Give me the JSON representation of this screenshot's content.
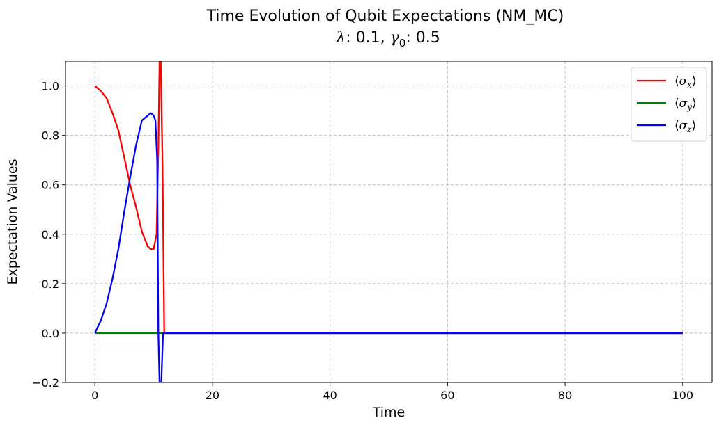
{
  "chart_data": {
    "type": "line",
    "title": "Time Evolution of Qubit Expectations (NM_MC)",
    "subtitle": "λ: 0.1, γ0: 0.5",
    "subtitle_parts": {
      "lambda_label": "λ",
      "lambda_value": ": 0.1, ",
      "gamma_label": "γ",
      "gamma_sub": "0",
      "gamma_value": ": 0.5"
    },
    "xlabel": "Time",
    "ylabel": "Expectation Values",
    "xlim": [
      -5,
      105
    ],
    "ylim": [
      -0.2,
      1.1
    ],
    "xticks": [
      0,
      20,
      40,
      60,
      80,
      100
    ],
    "yticks": [
      -0.2,
      0.0,
      0.2,
      0.4,
      0.6,
      0.8,
      1.0
    ],
    "ytick_labels": [
      "−0.2",
      "0.0",
      "0.2",
      "0.4",
      "0.6",
      "0.8",
      "1.0"
    ],
    "grid": true,
    "legend_position": "top-right",
    "series": [
      {
        "name": "⟨σx⟩",
        "label_parts": [
          "⟨",
          "σ",
          "x",
          "⟩"
        ],
        "color": "#ff0000",
        "x": [
          0,
          1,
          2,
          3,
          4,
          5,
          6,
          7,
          8,
          9,
          9.5,
          10,
          10.5,
          10.8,
          11.0,
          11.2,
          11.5,
          11.8,
          12,
          20,
          40,
          60,
          80,
          100
        ],
        "y": [
          1.0,
          0.98,
          0.95,
          0.89,
          0.82,
          0.71,
          0.6,
          0.51,
          0.41,
          0.35,
          0.34,
          0.34,
          0.4,
          0.75,
          1.1,
          1.1,
          0.7,
          0.0,
          0.0,
          0.0,
          0.0,
          0.0,
          0.0,
          0.0
        ]
      },
      {
        "name": "⟨σy⟩",
        "label_parts": [
          "⟨",
          "σ",
          "y",
          "⟩"
        ],
        "color": "#008000",
        "x": [
          0,
          20,
          40,
          60,
          80,
          100
        ],
        "y": [
          0.0,
          0.0,
          0.0,
          0.0,
          0.0,
          0.0
        ]
      },
      {
        "name": "⟨σz⟩",
        "label_parts": [
          "⟨",
          "σ",
          "z",
          "⟩"
        ],
        "color": "#0000ff",
        "x": [
          0,
          1,
          2,
          3,
          4,
          5,
          6,
          7,
          8,
          9,
          9.5,
          10,
          10.3,
          10.6,
          10.8,
          11,
          11.3,
          11.6,
          12,
          20,
          40,
          60,
          80,
          100
        ],
        "y": [
          0.0,
          0.05,
          0.12,
          0.22,
          0.34,
          0.49,
          0.63,
          0.76,
          0.86,
          0.88,
          0.89,
          0.88,
          0.86,
          0.7,
          0.0,
          -0.2,
          -0.2,
          0.0,
          0.0,
          0.0,
          0.0,
          0.0,
          0.0,
          0.0
        ]
      }
    ]
  }
}
